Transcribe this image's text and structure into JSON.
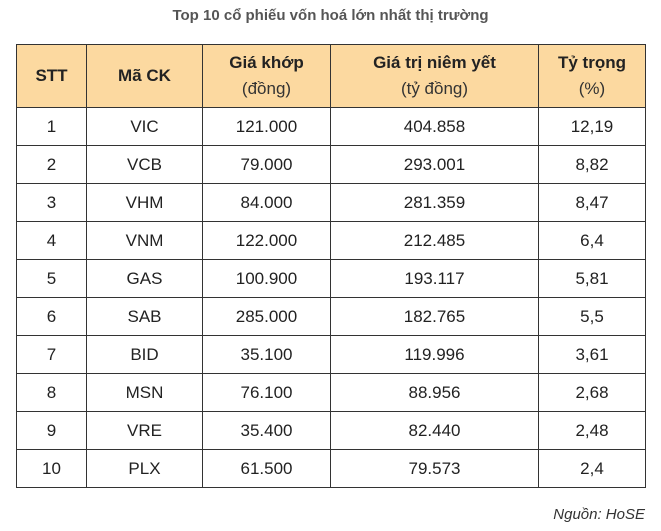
{
  "title": "Top 10 cổ phiếu vốn hoá lớn nhất thị trường",
  "table": {
    "headers": [
      {
        "label": "STT",
        "sub": ""
      },
      {
        "label": "Mã CK",
        "sub": ""
      },
      {
        "label": "Giá khớp",
        "sub": "(đồng)"
      },
      {
        "label": "Giá trị niêm yết",
        "sub": "(tỷ đồng)"
      },
      {
        "label": "Tỷ trọng",
        "sub": "(%)"
      }
    ],
    "rows": [
      [
        "1",
        "VIC",
        "121.000",
        "404.858",
        "12,19"
      ],
      [
        "2",
        "VCB",
        "79.000",
        "293.001",
        "8,82"
      ],
      [
        "3",
        "VHM",
        "84.000",
        "281.359",
        "8,47"
      ],
      [
        "4",
        "VNM",
        "122.000",
        "212.485",
        "6,4"
      ],
      [
        "5",
        "GAS",
        "100.900",
        "193.117",
        "5,81"
      ],
      [
        "6",
        "SAB",
        "285.000",
        "182.765",
        "5,5"
      ],
      [
        "7",
        "BID",
        "35.100",
        "119.996",
        "3,61"
      ],
      [
        "8",
        "MSN",
        "76.100",
        "88.956",
        "2,68"
      ],
      [
        "9",
        "VRE",
        "35.400",
        "82.440",
        "2,48"
      ],
      [
        "10",
        "PLX",
        "61.500",
        "79.573",
        "2,4"
      ]
    ]
  },
  "source": "Nguồn: HoSE",
  "colors": {
    "header_background": "#fcd9a0",
    "border": "#333333",
    "title_text": "#555555"
  }
}
